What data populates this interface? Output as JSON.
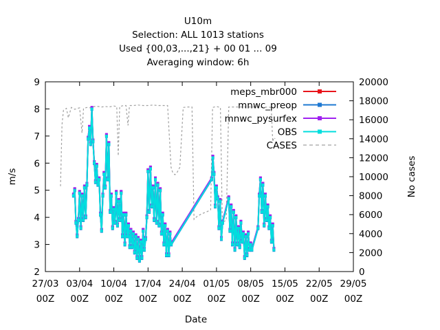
{
  "chart_data": {
    "type": "line",
    "title_lines": [
      "U10m",
      "Selection: ALL    1013 stations",
      "Used {00,03,...,21} + 00 01 ... 09",
      "Averaging window:  6h"
    ],
    "xlabel": "Date",
    "ylabel": "m/s",
    "y2label": "No cases",
    "x_ticks": [
      {
        "d": 0,
        "line1": "27/03",
        "line2": "00Z"
      },
      {
        "d": 7,
        "line1": "03/04",
        "line2": "00Z"
      },
      {
        "d": 14,
        "line1": "10/04",
        "line2": "00Z"
      },
      {
        "d": 21,
        "line1": "17/04",
        "line2": "00Z"
      },
      {
        "d": 28,
        "line1": "24/04",
        "line2": "00Z"
      },
      {
        "d": 35,
        "line1": "01/05",
        "line2": "00Z"
      },
      {
        "d": 42,
        "line1": "08/05",
        "line2": "00Z"
      },
      {
        "d": 49,
        "line1": "15/05",
        "line2": "00Z"
      },
      {
        "d": 56,
        "line1": "22/05",
        "line2": "00Z"
      },
      {
        "d": 63,
        "line1": "29/05",
        "line2": "00Z"
      }
    ],
    "xlim": [
      0,
      63
    ],
    "ylim": [
      2,
      9
    ],
    "y_ticks": [
      "2",
      "3",
      "4",
      "5",
      "6",
      "7",
      "8",
      "9"
    ],
    "y2lim": [
      0,
      20000
    ],
    "y2_ticks": [
      "0",
      "2000",
      "4000",
      "6000",
      "8000",
      "10000",
      "12000",
      "14000",
      "16000",
      "18000",
      "20000"
    ],
    "legend_position": "top-right",
    "series": [
      {
        "name": "meps_mbr000",
        "color": "#e8141a",
        "axis": "left",
        "marker": "square-dot"
      },
      {
        "name": "mnwc_preop",
        "color": "#1e78d2",
        "axis": "left",
        "marker": "square-dot"
      },
      {
        "name": "mnwc_pysurfex",
        "color": "#a020f0",
        "axis": "left",
        "marker": "square-dot"
      },
      {
        "name": "OBS",
        "color": "#00dede",
        "axis": "left",
        "marker": "square-dot"
      },
      {
        "name": "CASES",
        "color": "#a0a0a0",
        "axis": "right",
        "marker": "none",
        "dashed": true
      }
    ],
    "obs_points": [
      [
        5.75,
        4.8
      ],
      [
        6.0,
        5.0
      ],
      [
        6.25,
        3.8
      ],
      [
        6.5,
        3.3
      ],
      [
        6.75,
        3.9
      ],
      [
        7.0,
        4.9
      ],
      [
        7.25,
        3.6
      ],
      [
        7.5,
        4.8
      ],
      [
        7.75,
        3.9
      ],
      [
        8.0,
        5.1
      ],
      [
        8.25,
        4.0
      ],
      [
        8.5,
        5.2
      ],
      [
        8.75,
        6.9
      ],
      [
        9.0,
        7.3
      ],
      [
        9.25,
        6.7
      ],
      [
        9.5,
        8.0
      ],
      [
        9.75,
        6.8
      ],
      [
        10.0,
        6.0
      ],
      [
        10.25,
        5.3
      ],
      [
        10.5,
        5.9
      ],
      [
        10.75,
        5.2
      ],
      [
        11.0,
        5.4
      ],
      [
        11.25,
        4.1
      ],
      [
        11.5,
        3.5
      ],
      [
        11.75,
        4.8
      ],
      [
        12.0,
        5.6
      ],
      [
        12.25,
        5.1
      ],
      [
        12.5,
        7.0
      ],
      [
        12.75,
        5.4
      ],
      [
        13.0,
        6.7
      ],
      [
        13.25,
        4.2
      ],
      [
        13.5,
        4.8
      ],
      [
        13.75,
        3.6
      ],
      [
        14.0,
        4.3
      ],
      [
        14.25,
        3.8
      ],
      [
        14.5,
        4.9
      ],
      [
        14.75,
        3.7
      ],
      [
        15.0,
        4.6
      ],
      [
        15.25,
        3.9
      ],
      [
        15.5,
        4.9
      ],
      [
        15.75,
        3.3
      ],
      [
        16.0,
        4.1
      ],
      [
        16.25,
        3.0
      ],
      [
        16.5,
        4.1
      ],
      [
        16.75,
        3.3
      ],
      [
        17.0,
        3.7
      ],
      [
        17.25,
        2.9
      ],
      [
        17.5,
        3.5
      ],
      [
        17.75,
        2.9
      ],
      [
        18.0,
        3.4
      ],
      [
        18.25,
        2.7
      ],
      [
        18.5,
        3.3
      ],
      [
        18.75,
        2.5
      ],
      [
        19.0,
        3.2
      ],
      [
        19.25,
        2.4
      ],
      [
        19.5,
        3.1
      ],
      [
        19.75,
        2.5
      ],
      [
        20.0,
        3.5
      ],
      [
        20.25,
        2.8
      ],
      [
        20.5,
        3.2
      ],
      [
        20.75,
        4.0
      ],
      [
        21.0,
        5.7
      ],
      [
        21.25,
        4.2
      ],
      [
        21.5,
        5.8
      ],
      [
        21.75,
        4.4
      ],
      [
        22.0,
        5.1
      ],
      [
        22.25,
        3.9
      ],
      [
        22.5,
        5.4
      ],
      [
        22.75,
        3.8
      ],
      [
        23.0,
        5.2
      ],
      [
        23.25,
        3.7
      ],
      [
        23.5,
        5.0
      ],
      [
        23.75,
        3.4
      ],
      [
        24.0,
        4.1
      ],
      [
        24.25,
        3.0
      ],
      [
        24.5,
        3.7
      ],
      [
        24.75,
        2.6
      ],
      [
        25.0,
        3.5
      ],
      [
        25.25,
        2.6
      ],
      [
        25.5,
        3.4
      ],
      [
        25.75,
        3.0
      ],
      [
        34.0,
        5.4
      ],
      [
        34.25,
        6.2
      ],
      [
        34.5,
        5.6
      ],
      [
        34.75,
        4.4
      ],
      [
        35.0,
        5.1
      ],
      [
        35.25,
        4.7
      ],
      [
        35.5,
        3.6
      ],
      [
        35.75,
        4.6
      ],
      [
        36.0,
        3.2
      ],
      [
        36.25,
        3.8
      ],
      [
        37.5,
        4.7
      ],
      [
        37.75,
        3.5
      ],
      [
        38.0,
        4.4
      ],
      [
        38.25,
        3.0
      ],
      [
        38.5,
        4.2
      ],
      [
        38.75,
        2.8
      ],
      [
        39.0,
        4.0
      ],
      [
        39.25,
        3.0
      ],
      [
        39.5,
        3.6
      ],
      [
        39.75,
        2.9
      ],
      [
        40.0,
        3.8
      ],
      [
        40.25,
        3.1
      ],
      [
        40.5,
        3.4
      ],
      [
        40.75,
        2.5
      ],
      [
        41.0,
        3.3
      ],
      [
        41.25,
        2.6
      ],
      [
        41.5,
        3.4
      ],
      [
        41.75,
        2.8
      ],
      [
        42.0,
        3.0
      ],
      [
        42.25,
        2.8
      ],
      [
        43.5,
        3.6
      ],
      [
        43.75,
        4.8
      ],
      [
        44.0,
        5.4
      ],
      [
        44.25,
        4.2
      ],
      [
        44.5,
        5.2
      ],
      [
        44.75,
        3.7
      ],
      [
        45.0,
        4.8
      ],
      [
        45.25,
        3.9
      ],
      [
        45.5,
        4.4
      ],
      [
        45.75,
        3.6
      ],
      [
        46.0,
        4.0
      ],
      [
        46.25,
        3.1
      ],
      [
        46.5,
        3.7
      ],
      [
        46.75,
        2.8
      ]
    ],
    "gap_bridges": [
      [
        25.75,
        3.0,
        34.0,
        5.4
      ],
      [
        36.25,
        3.8,
        37.5,
        4.7
      ]
    ],
    "cases_points": [
      [
        3.1,
        9000
      ],
      [
        3.4,
        15500
      ],
      [
        3.7,
        17000
      ],
      [
        4.3,
        17200
      ],
      [
        4.7,
        16200
      ],
      [
        5.3,
        17300
      ],
      [
        6.0,
        17100
      ],
      [
        6.6,
        17200
      ],
      [
        7.0,
        17250
      ],
      [
        7.5,
        14600
      ],
      [
        7.8,
        17200
      ],
      [
        8.5,
        17300
      ],
      [
        9.3,
        17250
      ],
      [
        10.0,
        17400
      ],
      [
        10.8,
        17400
      ],
      [
        11.5,
        17350
      ],
      [
        12.3,
        17400
      ],
      [
        13.0,
        17350
      ],
      [
        14.0,
        17450
      ],
      [
        14.6,
        17400
      ],
      [
        14.9,
        12200
      ],
      [
        15.2,
        17400
      ],
      [
        16.0,
        17500
      ],
      [
        16.5,
        17500
      ],
      [
        16.9,
        15400
      ],
      [
        17.2,
        17500
      ],
      [
        18.0,
        17500
      ],
      [
        19.0,
        17550
      ],
      [
        20.0,
        17500
      ],
      [
        21.0,
        17500
      ],
      [
        22.0,
        17550
      ],
      [
        23.0,
        17500
      ],
      [
        24.0,
        17500
      ],
      [
        25.0,
        17500
      ],
      [
        25.7,
        11000
      ],
      [
        26.0,
        10500
      ],
      [
        26.5,
        10200
      ],
      [
        27.0,
        10500
      ],
      [
        27.5,
        11000
      ],
      [
        28.2,
        17300
      ],
      [
        29.0,
        17350
      ],
      [
        30.0,
        17350
      ],
      [
        30.4,
        5500
      ],
      [
        31.0,
        5800
      ],
      [
        32.0,
        6100
      ],
      [
        33.0,
        6300
      ],
      [
        33.8,
        6500
      ],
      [
        34.2,
        17300
      ],
      [
        35.0,
        17400
      ],
      [
        35.8,
        17300
      ],
      [
        36.2,
        5200
      ],
      [
        37.0,
        5400
      ],
      [
        37.5,
        17350
      ],
      [
        38.5,
        17350
      ],
      [
        39.5,
        17350
      ],
      [
        40.5,
        17350
      ],
      [
        41.5,
        17350
      ],
      [
        42.5,
        17350
      ],
      [
        43.5,
        17350
      ],
      [
        44.5,
        17300
      ],
      [
        45.5,
        17350
      ],
      [
        46.2,
        17300
      ],
      [
        46.5,
        13700
      ],
      [
        46.7,
        14100
      ],
      [
        47.0,
        14000
      ]
    ]
  }
}
